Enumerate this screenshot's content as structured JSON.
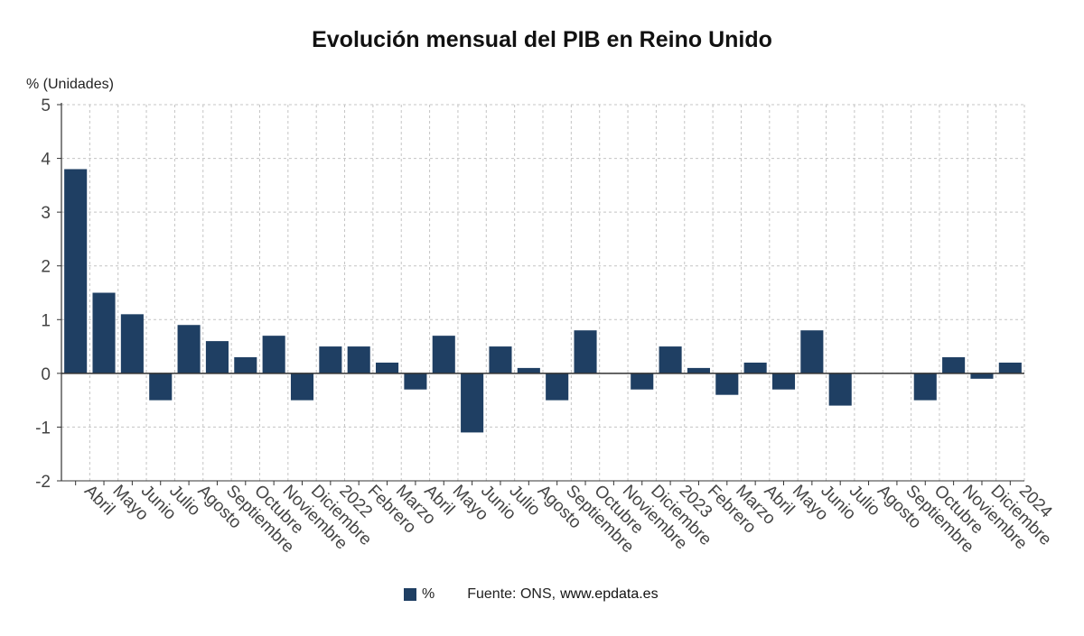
{
  "colors": {
    "bar": "#1f3f63",
    "grid": "#c4c4c4",
    "axis": "#333333",
    "text": "#444444"
  },
  "legend": {
    "label": "%",
    "source_label": "Fuente: ONS,",
    "source_url": "www.epdata.es"
  },
  "chart_data": {
    "type": "bar",
    "title": "Evolución mensual del PIB en Reino Unido",
    "ylabel": "% (Unidades)",
    "xlabel": "",
    "ylim": [
      -2,
      5
    ],
    "yticks": [
      5,
      4,
      3,
      2,
      1,
      0,
      -1,
      -2
    ],
    "grid": true,
    "legend_position": "bottom",
    "categories": [
      "Abril",
      "Mayo",
      "Junio",
      "Julio",
      "Agosto",
      "Septiembre",
      "Octubre",
      "Noviembre",
      "Diciembre",
      "2022",
      "Febrero",
      "Marzo",
      "Abril",
      "Mayo",
      "Junio",
      "Julio",
      "Agosto",
      "Septiembre",
      "Octubre",
      "Noviembre",
      "Diciembre",
      "2023",
      "Febrero",
      "Marzo",
      "Abril",
      "Mayo",
      "Junio",
      "Julio",
      "Agosto",
      "Septiembre",
      "Octubre",
      "Noviembre",
      "Diciembre",
      "2024"
    ],
    "series": [
      {
        "name": "%",
        "values": [
          3.8,
          1.5,
          1.1,
          -0.5,
          0.9,
          0.6,
          0.3,
          0.7,
          -0.5,
          0.5,
          0.5,
          0.2,
          -0.3,
          0.7,
          -1.1,
          0.5,
          0.1,
          -0.5,
          0.8,
          0.0,
          -0.3,
          0.5,
          0.1,
          -0.4,
          0.2,
          -0.3,
          0.8,
          -0.6,
          0.0,
          0.0,
          -0.5,
          0.3,
          -0.1,
          0.2
        ]
      }
    ]
  }
}
